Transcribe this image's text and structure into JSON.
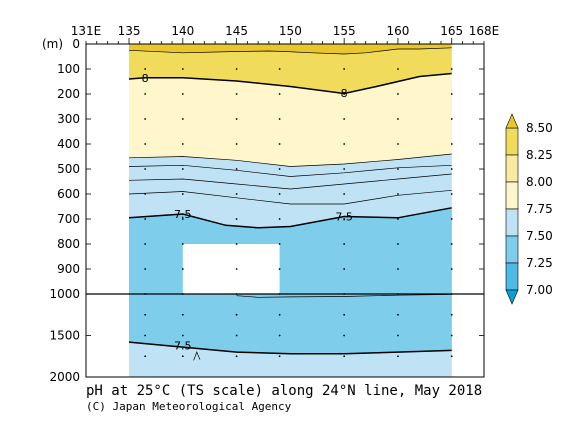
{
  "chart_data": {
    "type": "contour-section",
    "title": "pH at 25°C (TS scale) along 24°N line, May 2018",
    "credit": "(C) Japan Meteorological Agency",
    "x_axis": {
      "unit": "E",
      "range": [
        131,
        168
      ],
      "tick_labels": [
        "131E",
        "135",
        "140",
        "145",
        "150",
        "155",
        "160",
        "165",
        "168E"
      ],
      "tick_values": [
        131,
        135,
        140,
        145,
        150,
        155,
        160,
        165,
        168
      ]
    },
    "y_axis": {
      "unit_label": "(m)",
      "upper_panel": {
        "range": [
          0,
          1000
        ],
        "ticks": [
          0,
          100,
          200,
          300,
          400,
          500,
          600,
          700,
          800,
          900,
          1000
        ],
        "tick_labels": [
          "0",
          "100",
          "200",
          "300",
          "400",
          "500",
          "600",
          "700",
          "800",
          "900",
          "1000"
        ]
      },
      "lower_panel": {
        "range": [
          1000,
          2000
        ],
        "ticks": [
          1500,
          2000
        ],
        "tick_labels": [
          "1500",
          "2000"
        ]
      }
    },
    "data_extent_lon": [
      135,
      165
    ],
    "colorbar": {
      "levels": [
        "7.00",
        "7.25",
        "7.50",
        "7.75",
        "8.00",
        "8.25",
        "8.50"
      ],
      "colors": [
        "#0a9fd6",
        "#4dbbe6",
        "#7dcdeb",
        "#bfe3f5",
        "#fff6cc",
        "#f8eaa0",
        "#f0dc5a",
        "#e9c72c"
      ]
    },
    "contour_labels": [
      {
        "text": "8",
        "lon": 136.5,
        "depth": 135
      },
      {
        "text": "8",
        "lon": 155,
        "depth": 195
      },
      {
        "text": "7.5",
        "lon": 140,
        "depth": 680
      },
      {
        "text": "7.5",
        "lon": 155,
        "depth": 690
      },
      {
        "text": "7.5",
        "lon": 140,
        "depth": 1620
      }
    ],
    "no_data_box": {
      "lon": [
        140,
        149
      ],
      "depth": [
        800,
        1000
      ]
    },
    "contours": [
      {
        "level": 8.25,
        "bold": false,
        "points": [
          [
            135,
            25
          ],
          [
            140,
            35
          ],
          [
            145,
            30
          ],
          [
            148,
            28
          ],
          [
            149.5,
            30
          ],
          [
            152,
            35
          ],
          [
            155,
            40
          ],
          [
            157,
            35
          ],
          [
            160,
            20
          ],
          [
            162,
            20
          ],
          [
            165,
            15
          ]
        ]
      },
      {
        "level": 8.0,
        "bold": true,
        "points": [
          [
            135,
            140
          ],
          [
            136.5,
            135
          ],
          [
            140,
            135
          ],
          [
            145,
            148
          ],
          [
            150,
            170
          ],
          [
            155,
            198
          ],
          [
            158,
            170
          ],
          [
            162,
            130
          ],
          [
            165,
            118
          ]
        ]
      },
      {
        "level": 7.9,
        "bold": false,
        "points": [
          [
            135,
            455
          ],
          [
            140,
            450
          ],
          [
            145,
            465
          ],
          [
            150,
            490
          ],
          [
            155,
            480
          ],
          [
            160,
            462
          ],
          [
            165,
            440
          ]
        ]
      },
      {
        "level": 7.85,
        "bold": false,
        "points": [
          [
            135,
            490
          ],
          [
            140,
            485
          ],
          [
            145,
            505
          ],
          [
            150,
            530
          ],
          [
            155,
            515
          ],
          [
            160,
            495
          ],
          [
            165,
            485
          ]
        ]
      },
      {
        "level": 7.8,
        "bold": false,
        "points": [
          [
            135,
            545
          ],
          [
            140,
            540
          ],
          [
            145,
            560
          ],
          [
            150,
            580
          ],
          [
            155,
            560
          ],
          [
            160,
            540
          ],
          [
            165,
            520
          ]
        ]
      },
      {
        "level": 7.75,
        "bold": false,
        "points": [
          [
            135,
            600
          ],
          [
            140,
            590
          ],
          [
            145,
            615
          ],
          [
            150,
            640
          ],
          [
            155,
            640
          ],
          [
            160,
            605
          ],
          [
            165,
            585
          ]
        ]
      },
      {
        "level": 7.5,
        "bold": true,
        "points": [
          [
            135,
            695
          ],
          [
            140,
            680
          ],
          [
            144,
            725
          ],
          [
            147,
            735
          ],
          [
            150,
            730
          ],
          [
            155,
            690
          ],
          [
            160,
            695
          ],
          [
            165,
            655
          ]
        ]
      },
      {
        "level": 7.45,
        "bold": false,
        "points": [
          [
            145,
            1020
          ],
          [
            147,
            1040
          ],
          [
            150,
            1035
          ],
          [
            155,
            1030
          ],
          [
            160,
            1015
          ],
          [
            165,
            1005
          ]
        ]
      },
      {
        "level": 7.5,
        "bold": true,
        "points": [
          [
            135,
            1580
          ],
          [
            140,
            1640
          ],
          [
            145,
            1700
          ],
          [
            150,
            1720
          ],
          [
            155,
            1720
          ],
          [
            160,
            1700
          ],
          [
            165,
            1680
          ]
        ]
      }
    ]
  }
}
